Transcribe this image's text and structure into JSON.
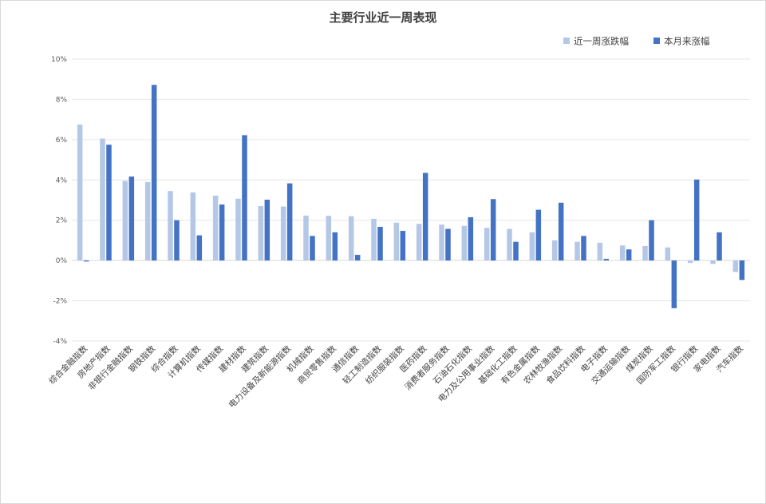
{
  "chart_data": {
    "type": "bar",
    "title": "主要行业近一周表现",
    "xlabel": "",
    "ylabel": "",
    "ylim": [
      -4,
      10
    ],
    "yticks": [
      "-4%",
      "-2%",
      "0%",
      "2%",
      "4%",
      "6%",
      "8%",
      "10%"
    ],
    "ytick_values": [
      -4,
      -2,
      0,
      2,
      4,
      6,
      8,
      10
    ],
    "grid": true,
    "legend_position": "top-right",
    "categories": [
      "综合金融指数",
      "房地产指数",
      "非银行金融指数",
      "钢铁指数",
      "综合指数",
      "计算机指数",
      "传媒指数",
      "建材指数",
      "建筑指数",
      "电力设备及新能源指数",
      "机械指数",
      "商贸零售指数",
      "通信指数",
      "轻工制造指数",
      "纺织服装指数",
      "医药指数",
      "消费者服务指数",
      "石油石化指数",
      "电力及公用事业指数",
      "基础化工指数",
      "有色金属指数",
      "农林牧渔指数",
      "食品饮料指数",
      "电子指数",
      "交通运输指数",
      "煤炭指数",
      "国防军工指数",
      "银行指数",
      "家电指数",
      "汽车指数"
    ],
    "series": [
      {
        "name": "近一周涨跌幅",
        "color": "#b4c7e7",
        "values": [
          6.75,
          6.05,
          3.95,
          3.9,
          3.45,
          3.38,
          3.22,
          3.07,
          2.7,
          2.68,
          2.23,
          2.22,
          2.2,
          2.07,
          1.88,
          1.82,
          1.78,
          1.72,
          1.62,
          1.57,
          1.4,
          1.0,
          0.93,
          0.88,
          0.75,
          0.72,
          0.65,
          -0.12,
          -0.17,
          -0.57
        ]
      },
      {
        "name": "本月来涨幅",
        "color": "#4472c4",
        "values": [
          -0.05,
          5.75,
          4.17,
          8.72,
          2.0,
          1.25,
          2.78,
          6.22,
          3.02,
          3.83,
          1.22,
          1.4,
          0.28,
          1.67,
          1.47,
          4.35,
          1.57,
          2.15,
          3.05,
          0.93,
          2.52,
          2.87,
          1.22,
          0.08,
          0.55,
          2.0,
          -2.37,
          4.02,
          1.4,
          -0.97
        ]
      }
    ]
  }
}
